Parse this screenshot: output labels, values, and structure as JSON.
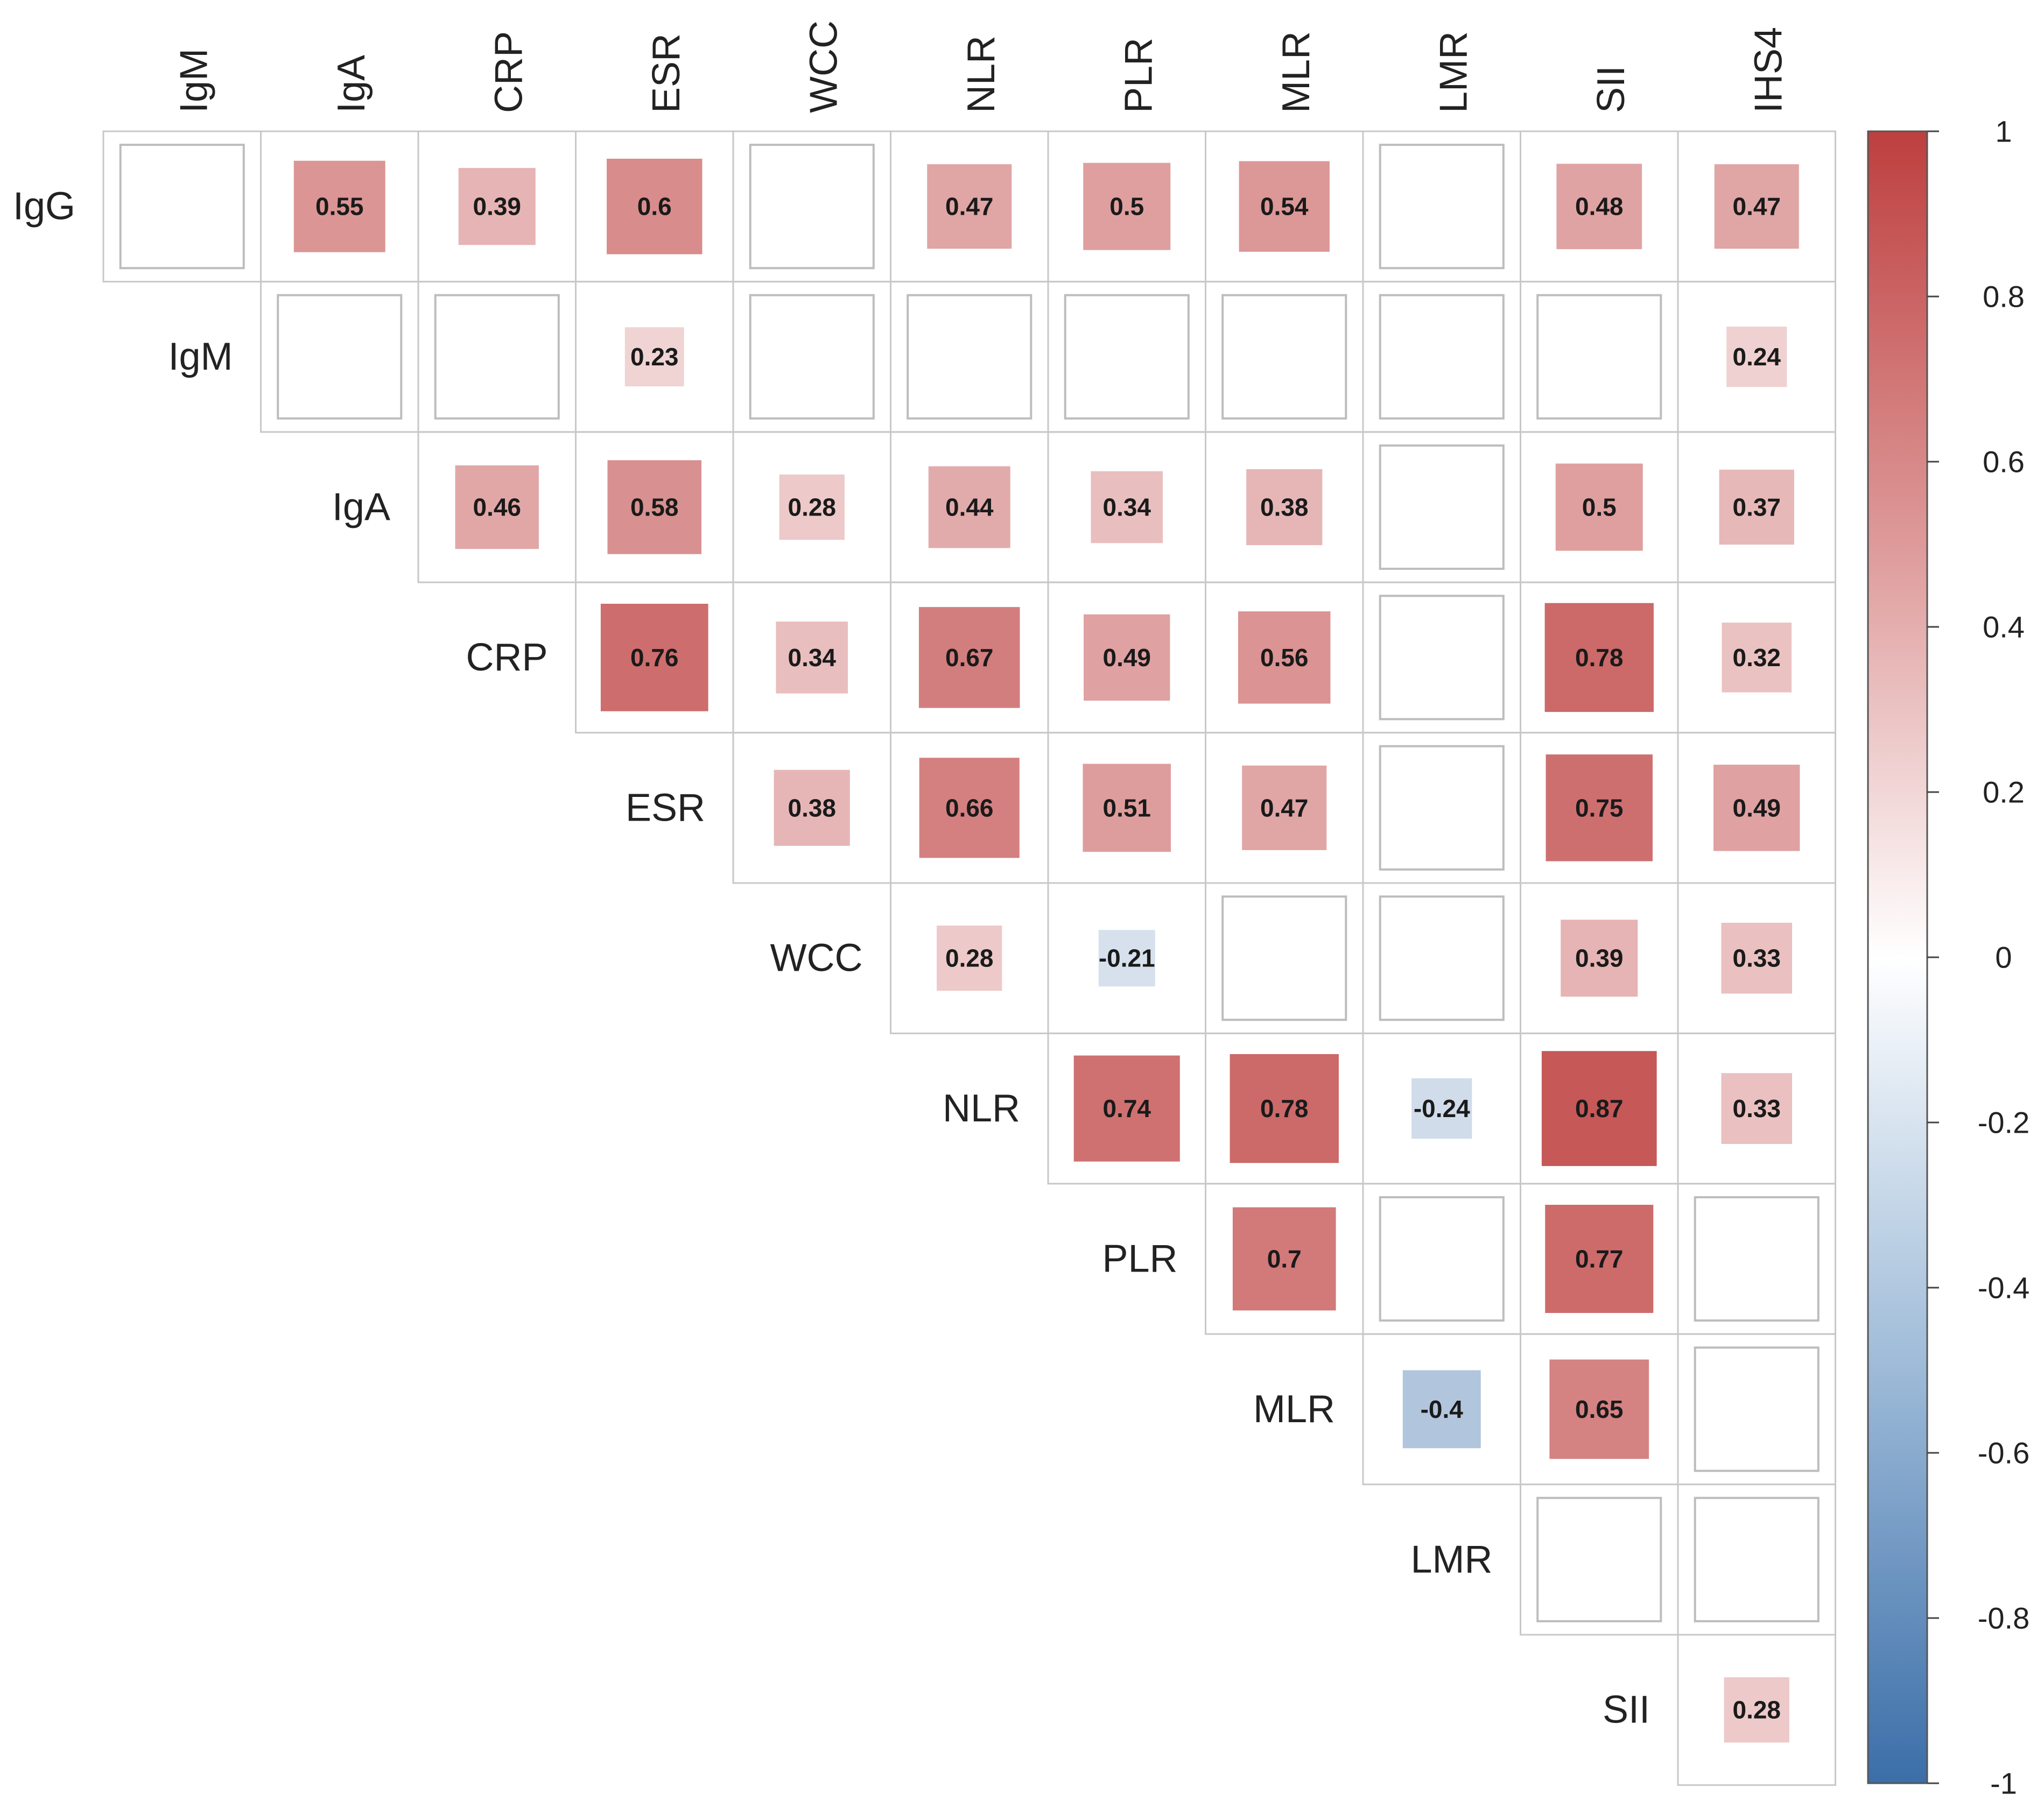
{
  "chart_data": {
    "type": "heatmap",
    "title": "",
    "variables": [
      "IgG",
      "IgM",
      "IgA",
      "CRP",
      "ESR",
      "WCC",
      "NLR",
      "PLR",
      "MLR",
      "LMR",
      "SII",
      "IHS4"
    ],
    "row_labels": [
      "IgG",
      "IgM",
      "IgA",
      "CRP",
      "ESR",
      "WCC",
      "NLR",
      "PLR",
      "MLR",
      "LMR",
      "SII"
    ],
    "column_labels": [
      "IgM",
      "IgA",
      "CRP",
      "ESR",
      "WCC",
      "NLR",
      "PLR",
      "MLR",
      "LMR",
      "SII",
      "IHS4"
    ],
    "matrix": [
      [
        null,
        0.55,
        0.39,
        0.6,
        null,
        0.47,
        0.5,
        0.54,
        null,
        0.48,
        0.47
      ],
      [
        null,
        null,
        null,
        0.23,
        null,
        null,
        null,
        null,
        null,
        null,
        0.24
      ],
      [
        null,
        null,
        0.46,
        0.58,
        0.28,
        0.44,
        0.34,
        0.38,
        null,
        0.5,
        0.37
      ],
      [
        null,
        null,
        null,
        0.76,
        0.34,
        0.67,
        0.49,
        0.56,
        null,
        0.78,
        0.32
      ],
      [
        null,
        null,
        null,
        null,
        0.38,
        0.66,
        0.51,
        0.47,
        null,
        0.75,
        0.49
      ],
      [
        null,
        null,
        null,
        null,
        null,
        0.28,
        -0.21,
        null,
        null,
        0.39,
        0.33
      ],
      [
        null,
        null,
        null,
        null,
        null,
        null,
        0.74,
        0.78,
        -0.24,
        0.87,
        0.33
      ],
      [
        null,
        null,
        null,
        null,
        null,
        null,
        null,
        0.7,
        null,
        0.77,
        null
      ],
      [
        null,
        null,
        null,
        null,
        null,
        null,
        null,
        null,
        -0.4,
        0.65,
        null
      ],
      [
        null,
        null,
        null,
        null,
        null,
        null,
        null,
        null,
        null,
        null,
        null
      ],
      [
        null,
        null,
        null,
        null,
        null,
        null,
        null,
        null,
        null,
        null,
        0.28
      ]
    ],
    "value_range": [
      -1,
      1
    ],
    "colorbar": {
      "ticks": [
        "1",
        "0.8",
        "0.6",
        "0.4",
        "0.2",
        "0",
        "-0.2",
        "-0.4",
        "-0.6",
        "-0.8",
        "-1"
      ],
      "tick_values": [
        1,
        0.8,
        0.6,
        0.4,
        0.2,
        0,
        -0.2,
        -0.4,
        -0.6,
        -0.8,
        -1
      ],
      "color_high": "#B2182B",
      "color_mid": "#FFFFFF",
      "color_low": "#2166AC"
    },
    "colors": {
      "cell_border": "#C8C8C8",
      "empty_square_border": "#BDBDBD",
      "positive_max": "#BE3F3F",
      "negative_max": "#3B6EA8"
    }
  }
}
